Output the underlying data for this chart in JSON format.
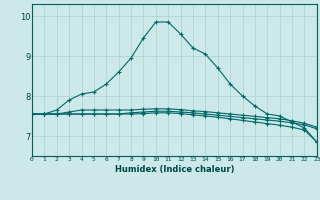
{
  "xlabel": "Humidex (Indice chaleur)",
  "bg_color": "#cce8e8",
  "grid_color": "#aad0d0",
  "line_color": "#006868",
  "xmin": 0,
  "xmax": 23,
  "ymin": 6.5,
  "ymax": 10.3,
  "yticks": [
    7,
    8,
    9,
    10
  ],
  "xticks": [
    0,
    1,
    2,
    3,
    4,
    5,
    6,
    7,
    8,
    9,
    10,
    11,
    12,
    13,
    14,
    15,
    16,
    17,
    18,
    19,
    20,
    21,
    22,
    23
  ],
  "line1_x": [
    0,
    1,
    2,
    3,
    4,
    5,
    6,
    7,
    8,
    9,
    10,
    11,
    12,
    13,
    14,
    15,
    16,
    17,
    18,
    19,
    20,
    21,
    22,
    23
  ],
  "line1_y": [
    7.55,
    7.55,
    7.65,
    7.9,
    8.05,
    8.1,
    8.3,
    8.6,
    8.95,
    9.45,
    9.85,
    9.85,
    9.55,
    9.2,
    9.05,
    8.7,
    8.3,
    8.0,
    7.75,
    7.55,
    7.5,
    7.35,
    7.2,
    6.85
  ],
  "line2_x": [
    0,
    1,
    2,
    3,
    4,
    5,
    6,
    7,
    8,
    9,
    10,
    11,
    12,
    13,
    14,
    15,
    16,
    17,
    18,
    19,
    20,
    21,
    22,
    23
  ],
  "line2_y": [
    7.55,
    7.55,
    7.55,
    7.6,
    7.65,
    7.65,
    7.65,
    7.65,
    7.65,
    7.67,
    7.68,
    7.68,
    7.66,
    7.63,
    7.61,
    7.58,
    7.55,
    7.52,
    7.49,
    7.46,
    7.43,
    7.38,
    7.32,
    7.22
  ],
  "line3_x": [
    0,
    1,
    2,
    3,
    4,
    5,
    6,
    7,
    8,
    9,
    10,
    11,
    12,
    13,
    14,
    15,
    16,
    17,
    18,
    19,
    20,
    21,
    22,
    23
  ],
  "line3_y": [
    7.55,
    7.55,
    7.55,
    7.55,
    7.55,
    7.55,
    7.55,
    7.55,
    7.58,
    7.6,
    7.62,
    7.62,
    7.6,
    7.58,
    7.55,
    7.52,
    7.49,
    7.46,
    7.43,
    7.4,
    7.37,
    7.33,
    7.28,
    7.18
  ],
  "line4_x": [
    0,
    1,
    2,
    3,
    4,
    5,
    6,
    7,
    8,
    9,
    10,
    11,
    12,
    13,
    14,
    15,
    16,
    17,
    18,
    19,
    20,
    21,
    22,
    23
  ],
  "line4_y": [
    7.55,
    7.55,
    7.55,
    7.55,
    7.55,
    7.55,
    7.55,
    7.55,
    7.55,
    7.56,
    7.58,
    7.58,
    7.56,
    7.53,
    7.5,
    7.47,
    7.43,
    7.39,
    7.35,
    7.31,
    7.27,
    7.22,
    7.15,
    6.85
  ]
}
